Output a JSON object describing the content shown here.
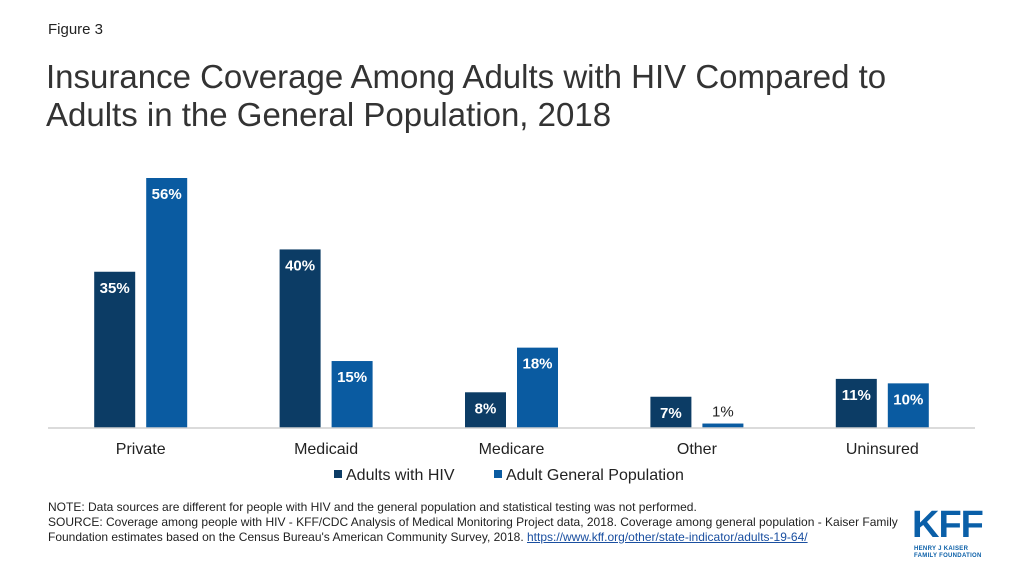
{
  "figure_label": "Figure 3",
  "chart_data": {
    "type": "bar",
    "title": "Insurance Coverage Among Adults with HIV Compared to Adults in the General Population, 2018",
    "categories": [
      "Private",
      "Medicaid",
      "Medicare",
      "Other",
      "Uninsured"
    ],
    "series": [
      {
        "name": "Adults with HIV",
        "values": [
          35,
          40,
          8,
          7,
          11
        ],
        "labels": [
          "35%",
          "40%",
          "8%",
          "7%",
          "11%"
        ],
        "color": "#0c3c65"
      },
      {
        "name": "Adult General Population",
        "values": [
          56,
          15,
          18,
          1,
          10
        ],
        "labels": [
          "56%",
          "15%",
          "18%",
          "1%",
          "10%"
        ],
        "color": "#0a5ba1"
      }
    ],
    "xlabel": "",
    "ylabel": "",
    "ylim": [
      0,
      56
    ],
    "grid": false,
    "legend_position": "bottom"
  },
  "note": {
    "line1": "NOTE: Data sources are different for people with HIV and the general population and statistical testing was not performed.",
    "line2": "SOURCE: Coverage among people with HIV  - KFF/CDC Analysis of Medical Monitoring Project data, 2018. Coverage among general population - Kaiser Family Foundation estimates based on the Census Bureau's American Community Survey, 2018. ",
    "link": "https://www.kff.org/other/state-indicator/adults-19-64/"
  },
  "logo": {
    "letters": "KFF",
    "subtitle_line1": "HENRY J KAISER",
    "subtitle_line2": "FAMILY FOUNDATION",
    "color": "#0a5fa8"
  }
}
